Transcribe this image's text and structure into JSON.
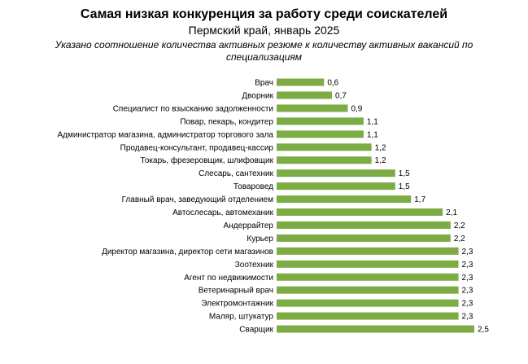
{
  "chart_data": {
    "type": "bar",
    "orientation": "horizontal",
    "title": "Самая низкая конкуренция за работу среди соискателей",
    "subtitle": "Пермский край, январь 2025",
    "note": "Указано соотношение количества активных резюме к количеству активных вакансий по специализациям",
    "bar_color": "#7cac43",
    "categories": [
      "Врач",
      "Дворник",
      "Специалист по взысканию задолженности",
      "Повар, пекарь, кондитер",
      "Администратор магазина, администратор торгового зала",
      "Продавец-консультант, продавец-кассир",
      "Токарь, фрезеровщик, шлифовщик",
      "Слесарь, сантехник",
      "Товаровед",
      "Главный врач, заведующий отделением",
      "Автослесарь, автомеханик",
      "Андеррайтер",
      "Курьер",
      "Директор магазина, директор сети магазинов",
      "Зоотехник",
      "Агент по недвижимости",
      "Ветеринарный врач",
      "Электромонтажник",
      "Маляр, штукатур",
      "Сварщик"
    ],
    "values": [
      0.6,
      0.7,
      0.9,
      1.1,
      1.1,
      1.2,
      1.2,
      1.5,
      1.5,
      1.7,
      2.1,
      2.2,
      2.2,
      2.3,
      2.3,
      2.3,
      2.3,
      2.3,
      2.3,
      2.5
    ],
    "value_labels": [
      "0,6",
      "0,7",
      "0,9",
      "1,1",
      "1,1",
      "1,2",
      "1,2",
      "1,5",
      "1,5",
      "1,7",
      "2,1",
      "2,2",
      "2,2",
      "2,3",
      "2,3",
      "2,3",
      "2,3",
      "2,3",
      "2,3",
      "2,5"
    ],
    "xlim": [
      0,
      2.5
    ],
    "grid": false
  }
}
